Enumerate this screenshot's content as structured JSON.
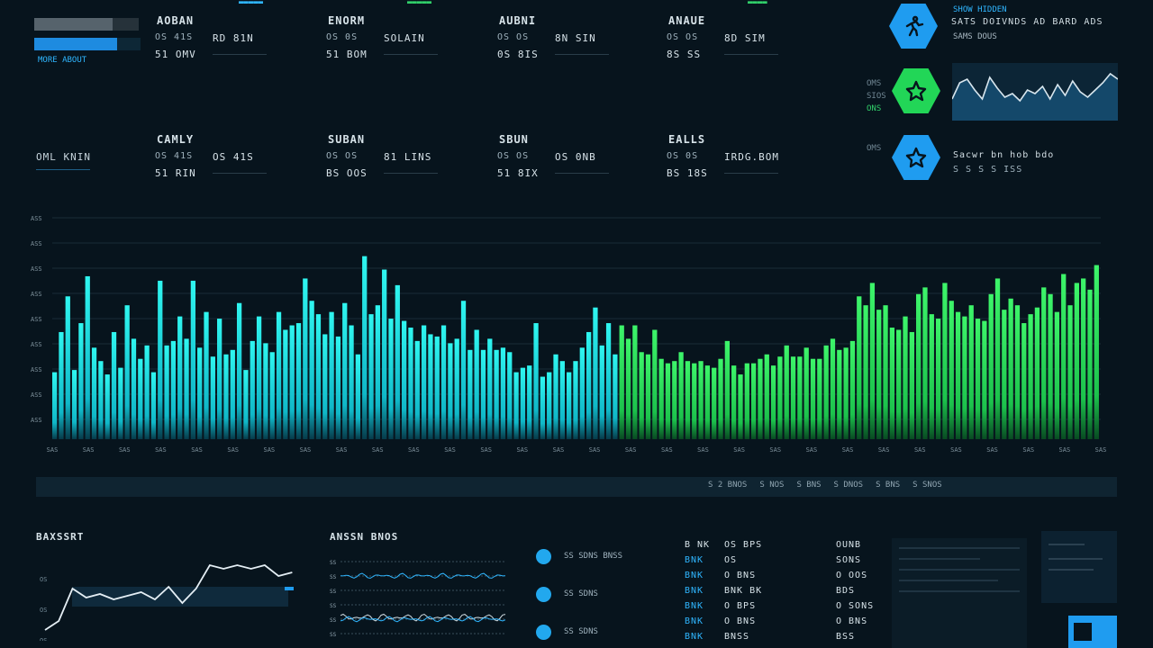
{
  "colors": {
    "background": "#07141d",
    "cyan": "#2fb6ff",
    "green": "#31d06a",
    "bar_cyan": "#1ff0ec",
    "bar_green": "#30f05c"
  },
  "header": {
    "tabs": [
      "",
      "",
      ""
    ],
    "progress": [
      {
        "name": "progress-bar-1",
        "value": 0.75
      },
      {
        "name": "progress-bar-2",
        "value": 0.78
      }
    ],
    "progress_caption": "MORE ABOUT"
  },
  "kpis_top": [
    {
      "title": "AOBAN",
      "r1a": "OS 41S",
      "r1b": "RD 81N",
      "r2a": "51 OMV"
    },
    {
      "title": "ENORM",
      "r1a": "OS 0S",
      "r1b": "SOLAIN",
      "r2a": "51 BOM"
    },
    {
      "title": "AUBNI",
      "r1a": "OS OS",
      "r1b": "8N SIN",
      "r2a": "0S 8IS"
    },
    {
      "title": "ANAUE",
      "r1a": "OS OS",
      "r1b": "8D SIM",
      "r2a": "8S SS"
    }
  ],
  "kpis_mid": [
    {
      "title": "CAMLY",
      "r1a": "OS 41S",
      "r1b": "OS 41S",
      "r2a": "51 RIN"
    },
    {
      "title": "SUBAN",
      "r1a": "OS OS",
      "r1b": "81 LINS",
      "r2a": "BS OOS"
    },
    {
      "title": "SBUN",
      "r1a": "OS OS",
      "r1b": "OS 0NB",
      "r2a": "51 8IX"
    },
    {
      "title": "EALLS",
      "r1a": "OS 0S",
      "r1b": "IRDG.BOM",
      "r2a": "BS 18S"
    }
  ],
  "side_label": "OML KNIN",
  "right_panel": {
    "title1": "SHOW HIDDEN",
    "line1": "SATS DOIVNDS AD BARD ADS",
    "line2": "SAMS DOUS",
    "left_tags": [
      "OMS",
      "SIOS",
      "ONS"
    ],
    "line3": "Sacwr bn hob bdo",
    "line4": "S  S  S  S  ISS",
    "icons": [
      "runner-icon",
      "star-icon",
      "star-icon"
    ]
  },
  "chart_data": {
    "type": "bar",
    "y_ticks": [
      "ASS",
      "ASS",
      "ASS",
      "ASS",
      "ASS",
      "ASS",
      "ASS",
      "ASS",
      "ASS"
    ],
    "x_ticks": [
      "SAS",
      "SAS",
      "SAS",
      "SAS",
      "SAS",
      "SAS",
      "SAS",
      "SAS",
      "SAS",
      "SAS",
      "SAS",
      "SAS",
      "SAS",
      "SAS",
      "SAS",
      "SAS",
      "SAS",
      "SAS",
      "SAS",
      "SAS",
      "SAS",
      "SAS",
      "SAS",
      "SAS",
      "SAS",
      "SAS",
      "SAS",
      "SAS",
      "SAS",
      "SAS"
    ],
    "ylim": [
      0,
      100
    ],
    "values": [
      30,
      48,
      64,
      31,
      52,
      73,
      41,
      35,
      29,
      48,
      32,
      60,
      45,
      36,
      42,
      30,
      71,
      42,
      44,
      55,
      45,
      71,
      41,
      57,
      37,
      54,
      38,
      40,
      61,
      31,
      44,
      55,
      43,
      39,
      57,
      49,
      51,
      52,
      72,
      62,
      56,
      47,
      57,
      46,
      61,
      51,
      38,
      82,
      56,
      60,
      76,
      54,
      69,
      53,
      50,
      44,
      51,
      47,
      46,
      51,
      43,
      45,
      62,
      40,
      49,
      40,
      45,
      40,
      41,
      39,
      30,
      32,
      33,
      52,
      28,
      30,
      38,
      35,
      30,
      35,
      41,
      48,
      59,
      42,
      52,
      38,
      51,
      45,
      51,
      39,
      38,
      49,
      36,
      34,
      35,
      39,
      35,
      34,
      35,
      33,
      32,
      36,
      44,
      33,
      29,
      34,
      34,
      36,
      38,
      33,
      37,
      42,
      37,
      37,
      41,
      36,
      36,
      42,
      45,
      40,
      41,
      44,
      64,
      60,
      70,
      58,
      60,
      50,
      49,
      55,
      48,
      65,
      68,
      56,
      54,
      70,
      62,
      57,
      55,
      60,
      54,
      53,
      65,
      72,
      58,
      63,
      60,
      52,
      56,
      59,
      68,
      65,
      57,
      74,
      60,
      70,
      72,
      67,
      78
    ],
    "green_from_index": 86
  },
  "filters": [
    "S 2 BNOS",
    "S NOS",
    "S BNS",
    "S DNOS",
    "S BNS",
    "S SNOS"
  ],
  "bottom": {
    "line_title": "BAXSSRT",
    "line_axis": [
      "OS",
      "OS",
      "OS"
    ],
    "line_values": [
      12,
      22,
      58,
      48,
      52,
      46,
      50,
      54,
      46,
      60,
      42,
      58,
      84,
      80,
      84,
      80,
      84,
      72,
      76
    ],
    "spark_title": "ANSSN BNOS",
    "spark_rows": [
      "SS",
      "SS",
      "SS",
      "SS",
      "SS",
      "SS"
    ],
    "dots": [
      "SS SDNS BNSS",
      "SS SDNS",
      "SS SDNS"
    ],
    "table": [
      [
        "B NK",
        "OS BPS",
        "OUNB"
      ],
      [
        "BNK",
        "OS",
        "SONS"
      ],
      [
        "BNK",
        "O BNS",
        "O OOS"
      ],
      [
        "BNK",
        "BNK BK",
        "BDS"
      ],
      [
        "BNK",
        "O BPS",
        "O SONS"
      ],
      [
        "BNK",
        "O BNS",
        "O BNS"
      ],
      [
        "BNK",
        "BNSS",
        "BSS"
      ]
    ]
  }
}
